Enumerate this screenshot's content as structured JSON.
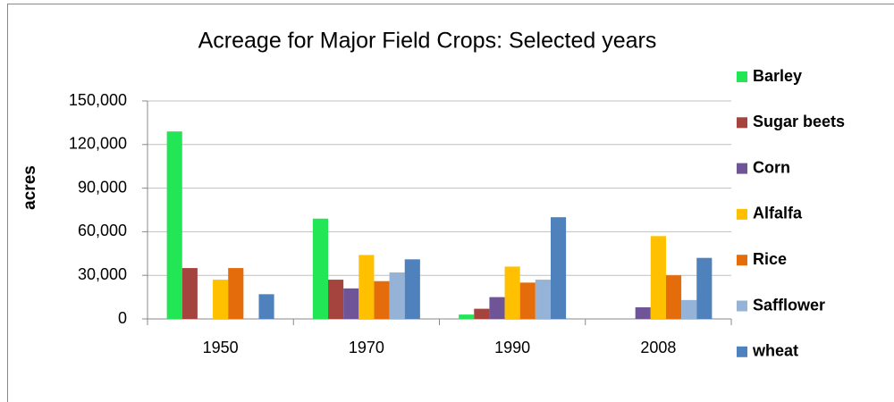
{
  "chart_data": {
    "type": "bar",
    "title": "Acreage for Major Field Crops: Selected years",
    "y_label": "acres",
    "categories": [
      "1950",
      "1970",
      "1990",
      "2008"
    ],
    "series": [
      {
        "name": "Barley",
        "color": "#22e655",
        "values": [
          129000,
          69000,
          3000,
          null
        ]
      },
      {
        "name": "Sugar beets",
        "color": "#a5443f",
        "values": [
          35000,
          27000,
          7000,
          null
        ]
      },
      {
        "name": "Corn",
        "color": "#6f5597",
        "values": [
          null,
          21000,
          15000,
          8000
        ]
      },
      {
        "name": "Alfalfa",
        "color": "#ffc000",
        "values": [
          27000,
          44000,
          36000,
          57000
        ]
      },
      {
        "name": "Rice",
        "color": "#e46c0a",
        "values": [
          35000,
          26000,
          25000,
          30000
        ]
      },
      {
        "name": "Safflower",
        "color": "#95b3d7",
        "values": [
          null,
          32000,
          27000,
          13000
        ]
      },
      {
        "name": "wheat",
        "color": "#4f81bd",
        "values": [
          17000,
          41000,
          70000,
          42000
        ]
      }
    ],
    "ylim": [
      0,
      150000
    ],
    "yticks": [
      0,
      {
        "value": 30000,
        "label": "30,000"
      },
      {
        "value": 60000,
        "label": "60,000"
      },
      {
        "value": 90000,
        "label": "90,000"
      },
      {
        "value": 120000,
        "label": "120,000"
      },
      {
        "value": 150000,
        "label": "150,000"
      }
    ],
    "grid": true,
    "legend": "right"
  }
}
